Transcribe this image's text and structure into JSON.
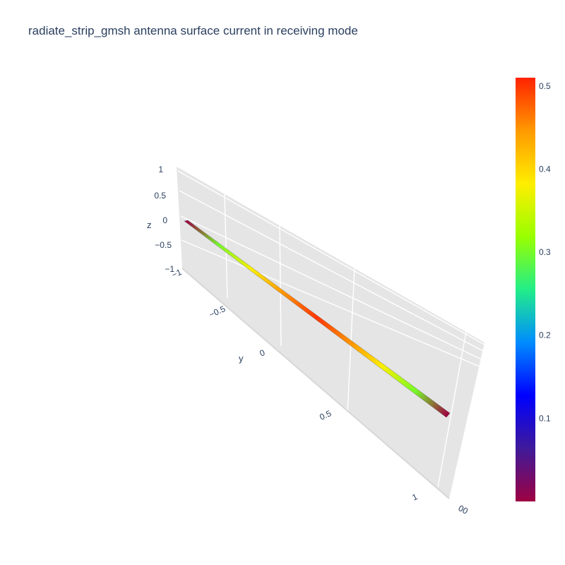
{
  "chart_data": {
    "type": "surface3d",
    "title": "radiate_strip_gmsh antenna surface current in receiving mode",
    "colorscale": [
      "#9e0142",
      "#3f1a9a",
      "#0000ff",
      "#008cff",
      "#22ee88",
      "#99ff00",
      "#ffee00",
      "#ff9900",
      "#ff2200"
    ],
    "colorbar": {
      "range": [
        0,
        0.51
      ],
      "ticks": [
        0.1,
        0.2,
        0.3,
        0.4,
        0.5
      ],
      "tick_labels": [
        "0.1",
        "0.2",
        "0.3",
        "0.4",
        "0.5"
      ]
    },
    "axes": {
      "y": {
        "title": "y",
        "range": [
          -1,
          1
        ],
        "ticks": [
          -1,
          -0.5,
          0,
          0.5,
          1
        ],
        "tick_labels": [
          "−1",
          "−0.5",
          "0",
          "0.5",
          "1"
        ]
      },
      "z": {
        "title": "z",
        "range": [
          -1,
          1
        ],
        "ticks": [
          -1,
          -0.5,
          0,
          0.5,
          1
        ],
        "tick_labels": [
          "−1",
          "−0.5",
          "0",
          "0.5",
          "1"
        ]
      },
      "x": {
        "tick_labels": [
          "00"
        ]
      }
    },
    "strip": {
      "y": [
        -1,
        -0.75,
        -0.5,
        -0.25,
        0,
        0.25,
        0.5,
        0.75,
        1
      ],
      "current": [
        0.0,
        0.3,
        0.38,
        0.45,
        0.5,
        0.45,
        0.38,
        0.3,
        0.0
      ]
    }
  }
}
